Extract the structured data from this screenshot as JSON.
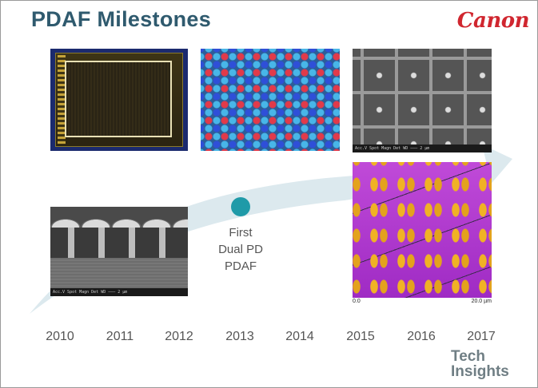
{
  "title": "PDAF Milestones",
  "logo": "Canon",
  "milestone": {
    "lines": [
      "First",
      "Dual PD",
      "PDAF"
    ]
  },
  "years": [
    "2010",
    "2011",
    "2012",
    "2013",
    "2014",
    "2015",
    "2016",
    "2017"
  ],
  "sem_bar_text": "Acc.V  Spot Magn  Det  WD  ——— 2 µm",
  "scale_caption": {
    "left": "0.0",
    "right": "20.0 µm"
  },
  "brand": {
    "line1": "Tech",
    "line2": "Insights"
  },
  "colors": {
    "title": "#2f5a6e",
    "logo": "#d0262f",
    "arrow": "#dce9ee",
    "dot": "#1f9aa8",
    "brand": "#6f7e84"
  }
}
